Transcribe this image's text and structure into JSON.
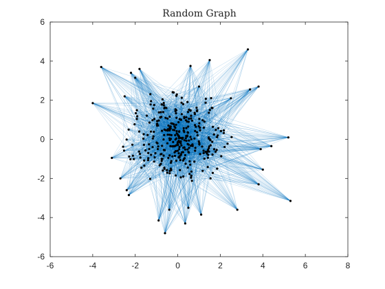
{
  "chart_data": {
    "type": "scatter",
    "title": "Random Graph",
    "xlabel": "",
    "ylabel": "",
    "xlim": [
      -6,
      8
    ],
    "ylim": [
      -6,
      6
    ],
    "xticks": [
      -6,
      -4,
      -2,
      0,
      2,
      4,
      6,
      8
    ],
    "yticks": [
      -6,
      -4,
      -2,
      0,
      2,
      4,
      6
    ],
    "x_tick_labels": [
      "-6",
      "-4",
      "-2",
      "0",
      "2",
      "4",
      "6",
      "8"
    ],
    "y_tick_labels": [
      "-6",
      "-4",
      "-2",
      "0",
      "2",
      "4",
      "6"
    ],
    "grid": false,
    "legend": "none",
    "colors": {
      "node": "#000000",
      "edge": "#0072bd",
      "axes": "#262626"
    },
    "outer_nodes": [
      [
        -4.0,
        1.85
      ],
      [
        -3.6,
        3.7
      ],
      [
        -2.2,
        3.4
      ],
      [
        -1.8,
        3.6
      ],
      [
        0.6,
        3.75
      ],
      [
        1.5,
        4.05
      ],
      [
        3.3,
        4.6
      ],
      [
        3.8,
        2.7
      ],
      [
        5.2,
        0.1
      ],
      [
        5.3,
        -3.15
      ],
      [
        4.0,
        -1.55
      ],
      [
        3.8,
        -2.3
      ],
      [
        2.8,
        -3.6
      ],
      [
        1.1,
        -3.85
      ],
      [
        0.35,
        -4.3
      ],
      [
        -0.6,
        -4.8
      ],
      [
        -0.9,
        -4.15
      ],
      [
        -2.3,
        -2.85
      ],
      [
        -2.7,
        -2.0
      ],
      [
        -3.1,
        -0.95
      ],
      [
        3.4,
        2.55
      ],
      [
        -2.0,
        3.15
      ],
      [
        1.0,
        2.7
      ],
      [
        -2.5,
        2.2
      ],
      [
        2.5,
        2.1
      ],
      [
        3.9,
        -0.5
      ],
      [
        4.4,
        -0.35
      ],
      [
        -2.4,
        -2.6
      ],
      [
        -0.4,
        -3.6
      ],
      [
        0.5,
        -3.5
      ]
    ],
    "core": {
      "count": 330,
      "radius": 2.25,
      "seed": 17
    }
  }
}
